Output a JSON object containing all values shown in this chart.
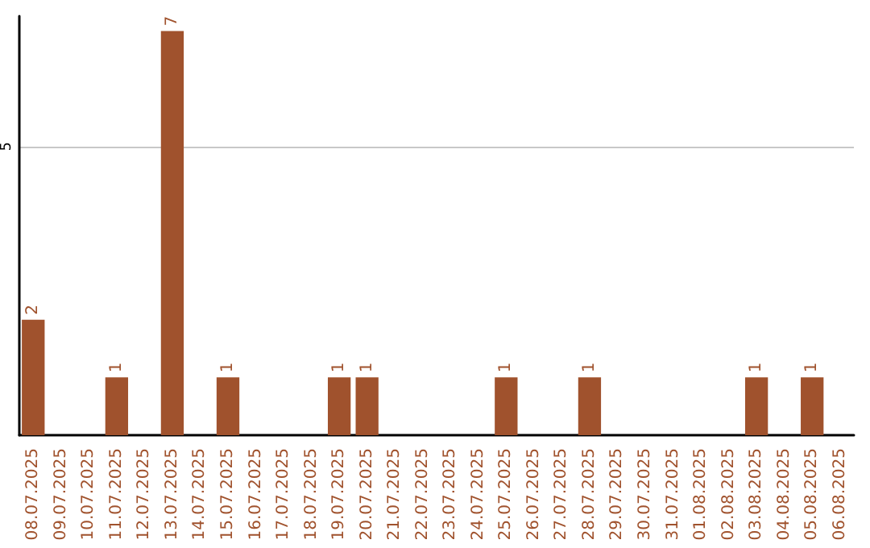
{
  "chart_data": {
    "type": "bar",
    "categories": [
      "08.07.2025",
      "09.07.2025",
      "10.07.2025",
      "11.07.2025",
      "12.07.2025",
      "13.07.2025",
      "14.07.2025",
      "15.07.2025",
      "16.07.2025",
      "17.07.2025",
      "18.07.2025",
      "19.07.2025",
      "20.07.2025",
      "21.07.2025",
      "22.07.2025",
      "23.07.2025",
      "24.07.2025",
      "25.07.2025",
      "26.07.2025",
      "27.07.2025",
      "28.07.2025",
      "29.07.2025",
      "30.07.2025",
      "31.07.2025",
      "01.08.2025",
      "02.08.2025",
      "03.08.2025",
      "04.08.2025",
      "05.08.2025",
      "06.08.2025"
    ],
    "values": [
      2,
      0,
      0,
      1,
      0,
      7,
      0,
      1,
      0,
      0,
      0,
      1,
      1,
      0,
      0,
      0,
      0,
      1,
      0,
      0,
      1,
      0,
      0,
      0,
      0,
      0,
      1,
      0,
      1,
      0
    ],
    "value_labels": [
      "2",
      null,
      null,
      "1",
      null,
      "7",
      null,
      "1",
      null,
      null,
      null,
      "1",
      "1",
      null,
      null,
      null,
      null,
      "1",
      null,
      null,
      "1",
      null,
      null,
      null,
      null,
      null,
      "1",
      null,
      "1",
      null
    ],
    "color": "#a0522d",
    "ylim": [
      0,
      7.26
    ],
    "yticks": [
      5
    ],
    "grid": "y"
  }
}
